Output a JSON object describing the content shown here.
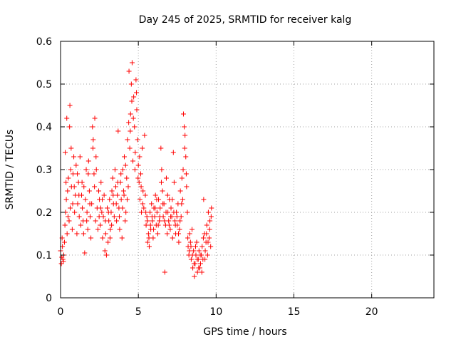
{
  "chart_data": {
    "type": "scatter",
    "title": "Day 245 of 2025, SRMTID for receiver kalg",
    "xlabel": "GPS time / hours",
    "ylabel": "SRMTID / TECUs",
    "xlim": [
      0,
      24
    ],
    "ylim": [
      0,
      0.6
    ],
    "x_ticks": [
      0,
      5,
      10,
      15,
      20
    ],
    "x_tick_labels": [
      "0",
      "5",
      "10",
      "15",
      "20"
    ],
    "y_ticks": [
      0,
      0.1,
      0.2,
      0.3,
      0.4,
      0.5,
      0.6
    ],
    "y_tick_labels": [
      "0",
      "0.1",
      "0.2",
      "0.3",
      "0.4",
      "0.5",
      "0.6"
    ],
    "grid": true,
    "marker": "+",
    "series": [
      {
        "name": "SRMTID",
        "color": "#ff0000",
        "points": [
          [
            0.0,
            0.11
          ],
          [
            0.05,
            0.08
          ],
          [
            0.08,
            0.095
          ],
          [
            0.1,
            0.14
          ],
          [
            0.15,
            0.09
          ],
          [
            0.2,
            0.1
          ],
          [
            0.25,
            0.13
          ],
          [
            0.3,
            0.34
          ],
          [
            0.32,
            0.2
          ],
          [
            0.35,
            0.27
          ],
          [
            0.4,
            0.42
          ],
          [
            0.42,
            0.15
          ],
          [
            0.45,
            0.25
          ],
          [
            0.5,
            0.28
          ],
          [
            0.55,
            0.18
          ],
          [
            0.58,
            0.4
          ],
          [
            0.6,
            0.45
          ],
          [
            0.62,
            0.21
          ],
          [
            0.65,
            0.3
          ],
          [
            0.7,
            0.26
          ],
          [
            0.75,
            0.16
          ],
          [
            0.8,
            0.29
          ],
          [
            0.85,
            0.33
          ],
          [
            0.9,
            0.2
          ],
          [
            0.95,
            0.24
          ],
          [
            1.0,
            0.31
          ],
          [
            1.05,
            0.15
          ],
          [
            1.1,
            0.22
          ],
          [
            1.15,
            0.27
          ],
          [
            1.2,
            0.19
          ],
          [
            1.25,
            0.33
          ],
          [
            1.3,
            0.17
          ],
          [
            1.35,
            0.24
          ],
          [
            1.4,
            0.21
          ],
          [
            1.45,
            0.18
          ],
          [
            1.5,
            0.26
          ],
          [
            1.55,
            0.105
          ],
          [
            1.6,
            0.23
          ],
          [
            1.65,
            0.3
          ],
          [
            1.7,
            0.2
          ],
          [
            1.75,
            0.16
          ],
          [
            1.8,
            0.32
          ],
          [
            1.85,
            0.25
          ],
          [
            1.9,
            0.19
          ],
          [
            1.95,
            0.14
          ],
          [
            2.0,
            0.22
          ],
          [
            2.05,
            0.4
          ],
          [
            2.1,
            0.37
          ],
          [
            2.15,
            0.29
          ],
          [
            2.2,
            0.42
          ],
          [
            2.25,
            0.18
          ],
          [
            2.3,
            0.3
          ],
          [
            2.35,
            0.21
          ],
          [
            2.4,
            0.16
          ],
          [
            2.45,
            0.25
          ],
          [
            2.5,
            0.23
          ],
          [
            2.55,
            0.17
          ],
          [
            2.6,
            0.27
          ],
          [
            2.65,
            0.2
          ],
          [
            2.7,
            0.14
          ],
          [
            2.75,
            0.19
          ],
          [
            2.8,
            0.24
          ],
          [
            2.85,
            0.11
          ],
          [
            2.9,
            0.15
          ],
          [
            2.95,
            0.1
          ],
          [
            3.0,
            0.21
          ],
          [
            3.05,
            0.13
          ],
          [
            3.1,
            0.18
          ],
          [
            3.15,
            0.23
          ],
          [
            3.2,
            0.16
          ],
          [
            3.25,
            0.2
          ],
          [
            3.3,
            0.25
          ],
          [
            3.35,
            0.28
          ],
          [
            3.4,
            0.22
          ],
          [
            3.45,
            0.19
          ],
          [
            3.5,
            0.3
          ],
          [
            3.55,
            0.26
          ],
          [
            3.6,
            0.18
          ],
          [
            3.65,
            0.24
          ],
          [
            3.7,
            0.39
          ],
          [
            3.75,
            0.21
          ],
          [
            3.8,
            0.16
          ],
          [
            3.85,
            0.27
          ],
          [
            3.9,
            0.23
          ],
          [
            3.95,
            0.14
          ],
          [
            4.0,
            0.3
          ],
          [
            4.05,
            0.25
          ],
          [
            4.1,
            0.33
          ],
          [
            4.15,
            0.18
          ],
          [
            4.2,
            0.2
          ],
          [
            4.25,
            0.28
          ],
          [
            4.3,
            0.37
          ],
          [
            4.35,
            0.26
          ],
          [
            4.4,
            0.53
          ],
          [
            4.45,
            0.35
          ],
          [
            4.5,
            0.43
          ],
          [
            4.55,
            0.5
          ],
          [
            4.6,
            0.55
          ],
          [
            4.65,
            0.32
          ],
          [
            4.7,
            0.47
          ],
          [
            4.75,
            0.4
          ],
          [
            4.8,
            0.34
          ],
          [
            4.85,
            0.51
          ],
          [
            4.9,
            0.44
          ],
          [
            4.95,
            0.37
          ],
          [
            5.0,
            0.31
          ],
          [
            5.05,
            0.27
          ],
          [
            5.1,
            0.23
          ],
          [
            5.15,
            0.29
          ],
          [
            5.2,
            0.2
          ],
          [
            5.25,
            0.35
          ],
          [
            5.3,
            0.25
          ],
          [
            5.35,
            0.21
          ],
          [
            5.4,
            0.38
          ],
          [
            5.45,
            0.24
          ],
          [
            5.5,
            0.17
          ],
          [
            5.55,
            0.19
          ],
          [
            5.6,
            0.13
          ],
          [
            5.65,
            0.15
          ],
          [
            5.7,
            0.12
          ],
          [
            5.75,
            0.2
          ],
          [
            5.8,
            0.16
          ],
          [
            5.85,
            0.22
          ],
          [
            5.9,
            0.18
          ],
          [
            5.95,
            0.14
          ],
          [
            6.0,
            0.21
          ],
          [
            6.05,
            0.19
          ],
          [
            6.1,
            0.24
          ],
          [
            6.15,
            0.17
          ],
          [
            6.2,
            0.2
          ],
          [
            6.25,
            0.15
          ],
          [
            6.3,
            0.23
          ],
          [
            6.35,
            0.18
          ],
          [
            6.4,
            0.21
          ],
          [
            6.45,
            0.35
          ],
          [
            6.5,
            0.3
          ],
          [
            6.55,
            0.25
          ],
          [
            6.6,
            0.19
          ],
          [
            6.65,
            0.22
          ],
          [
            6.7,
            0.06
          ],
          [
            6.75,
            0.17
          ],
          [
            6.8,
            0.28
          ],
          [
            6.85,
            0.15
          ],
          [
            6.9,
            0.2
          ],
          [
            6.95,
            0.18
          ],
          [
            7.0,
            0.23
          ],
          [
            7.05,
            0.16
          ],
          [
            7.1,
            0.21
          ],
          [
            7.15,
            0.19
          ],
          [
            7.2,
            0.14
          ],
          [
            7.25,
            0.34
          ],
          [
            7.3,
            0.27
          ],
          [
            7.35,
            0.18
          ],
          [
            7.4,
            0.15
          ],
          [
            7.45,
            0.2
          ],
          [
            7.5,
            0.17
          ],
          [
            7.55,
            0.22
          ],
          [
            7.6,
            0.13
          ],
          [
            7.65,
            0.16
          ],
          [
            7.7,
            0.25
          ],
          [
            7.75,
            0.19
          ],
          [
            7.8,
            0.28
          ],
          [
            7.85,
            0.23
          ],
          [
            7.9,
            0.43
          ],
          [
            7.95,
            0.4
          ],
          [
            8.0,
            0.38
          ],
          [
            8.05,
            0.33
          ],
          [
            8.1,
            0.26
          ],
          [
            8.15,
            0.2
          ],
          [
            8.2,
            0.12
          ],
          [
            8.25,
            0.1
          ],
          [
            8.3,
            0.15
          ],
          [
            8.35,
            0.13
          ],
          [
            8.4,
            0.09
          ],
          [
            8.45,
            0.16
          ],
          [
            8.5,
            0.07
          ],
          [
            8.55,
            0.11
          ],
          [
            8.6,
            0.05
          ],
          [
            8.65,
            0.08
          ],
          [
            8.7,
            0.1
          ],
          [
            8.75,
            0.13
          ],
          [
            8.8,
            0.06
          ],
          [
            8.85,
            0.09
          ],
          [
            8.9,
            0.11
          ],
          [
            8.95,
            0.07
          ],
          [
            9.0,
            0.08
          ],
          [
            9.05,
            0.1
          ],
          [
            9.1,
            0.12
          ],
          [
            9.15,
            0.09
          ],
          [
            9.2,
            0.23
          ],
          [
            9.25,
            0.15
          ],
          [
            9.3,
            0.11
          ],
          [
            9.35,
            0.13
          ],
          [
            9.4,
            0.17
          ],
          [
            9.45,
            0.1
          ],
          [
            9.5,
            0.2
          ],
          [
            9.55,
            0.14
          ],
          [
            9.6,
            0.18
          ],
          [
            9.65,
            0.12
          ],
          [
            9.7,
            0.21
          ],
          [
            0.12,
            0.12
          ],
          [
            0.18,
            0.085
          ],
          [
            0.28,
            0.17
          ],
          [
            0.37,
            0.23
          ],
          [
            0.48,
            0.19
          ],
          [
            0.68,
            0.35
          ],
          [
            0.78,
            0.22
          ],
          [
            0.88,
            0.26
          ],
          [
            1.08,
            0.29
          ],
          [
            1.18,
            0.24
          ],
          [
            1.38,
            0.27
          ],
          [
            1.48,
            0.15
          ],
          [
            1.68,
            0.18
          ],
          [
            1.78,
            0.29
          ],
          [
            1.88,
            0.22
          ],
          [
            2.08,
            0.35
          ],
          [
            2.18,
            0.26
          ],
          [
            2.28,
            0.33
          ],
          [
            2.48,
            0.19
          ],
          [
            2.58,
            0.21
          ],
          [
            2.68,
            0.23
          ],
          [
            2.88,
            0.18
          ],
          [
            3.08,
            0.2
          ],
          [
            3.18,
            0.14
          ],
          [
            3.28,
            0.17
          ],
          [
            3.38,
            0.24
          ],
          [
            3.58,
            0.22
          ],
          [
            3.68,
            0.27
          ],
          [
            3.78,
            0.19
          ],
          [
            3.88,
            0.29
          ],
          [
            3.98,
            0.21
          ],
          [
            4.08,
            0.24
          ],
          [
            4.18,
            0.31
          ],
          [
            4.28,
            0.23
          ],
          [
            4.38,
            0.41
          ],
          [
            4.48,
            0.39
          ],
          [
            4.58,
            0.46
          ],
          [
            4.68,
            0.42
          ],
          [
            4.78,
            0.3
          ],
          [
            4.88,
            0.48
          ],
          [
            4.98,
            0.28
          ],
          [
            5.08,
            0.33
          ],
          [
            5.18,
            0.26
          ],
          [
            5.28,
            0.22
          ],
          [
            5.48,
            0.2
          ],
          [
            5.58,
            0.18
          ],
          [
            5.68,
            0.14
          ],
          [
            5.78,
            0.17
          ],
          [
            5.88,
            0.19
          ],
          [
            5.98,
            0.16
          ],
          [
            6.08,
            0.21
          ],
          [
            6.18,
            0.23
          ],
          [
            6.28,
            0.17
          ],
          [
            6.38,
            0.19
          ],
          [
            6.48,
            0.27
          ],
          [
            6.58,
            0.22
          ],
          [
            6.68,
            0.18
          ],
          [
            6.78,
            0.2
          ],
          [
            6.88,
            0.24
          ],
          [
            6.98,
            0.17
          ],
          [
            7.08,
            0.19
          ],
          [
            7.18,
            0.23
          ],
          [
            7.28,
            0.2
          ],
          [
            7.38,
            0.17
          ],
          [
            7.48,
            0.19
          ],
          [
            7.58,
            0.15
          ],
          [
            7.68,
            0.18
          ],
          [
            7.78,
            0.22
          ],
          [
            7.88,
            0.3
          ],
          [
            7.98,
            0.35
          ],
          [
            8.08,
            0.29
          ],
          [
            8.18,
            0.14
          ],
          [
            8.28,
            0.11
          ],
          [
            8.38,
            0.12
          ],
          [
            8.48,
            0.1
          ],
          [
            8.58,
            0.08
          ],
          [
            8.68,
            0.12
          ],
          [
            8.78,
            0.09
          ],
          [
            8.88,
            0.07
          ],
          [
            8.98,
            0.1
          ],
          [
            9.08,
            0.06
          ],
          [
            9.18,
            0.14
          ],
          [
            9.28,
            0.09
          ],
          [
            9.38,
            0.15
          ],
          [
            9.48,
            0.13
          ],
          [
            9.58,
            0.16
          ],
          [
            9.68,
            0.19
          ]
        ]
      }
    ]
  }
}
